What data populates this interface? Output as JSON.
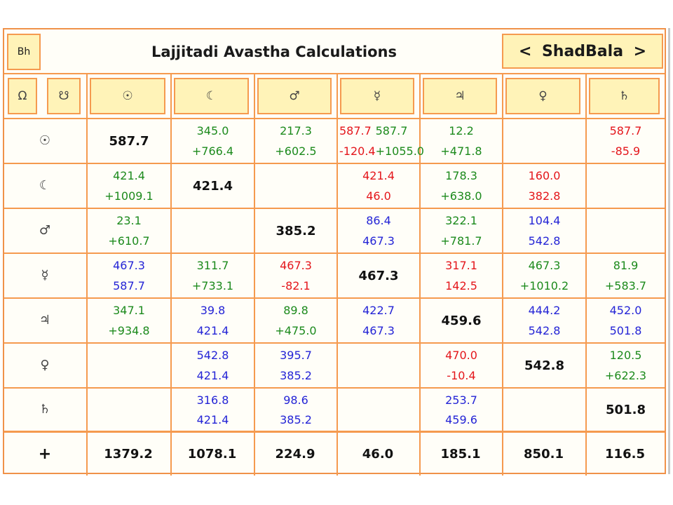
{
  "header": {
    "bh_label": "Bh",
    "title": "Lajjitadi Avastha Calculations",
    "nav_prev": "<",
    "nav_label": "ShadBala",
    "nav_next": ">"
  },
  "node_buttons": [
    "Ω",
    "☋"
  ],
  "planets": [
    "☉",
    "☾",
    "♂",
    "☿",
    "♃",
    "♀",
    "♄"
  ],
  "rows": [
    {
      "label": "☉",
      "cells": [
        {
          "diag": "587.7"
        },
        {
          "top": "345.0",
          "bottom": "+766.4",
          "color": "g"
        },
        {
          "top": "217.3",
          "bottom": "+602.5",
          "color": "g"
        },
        {
          "split": [
            {
              "top": "587.7",
              "bottom": "-120.4",
              "color": "r"
            },
            {
              "top": "587.7",
              "bottom": "+1055.0",
              "color": "g"
            }
          ]
        },
        {
          "top": "12.2",
          "bottom": "+471.8",
          "color": "g"
        },
        {},
        {
          "top": "587.7",
          "bottom": "-85.9",
          "color": "r"
        }
      ]
    },
    {
      "label": "☾",
      "cells": [
        {
          "top": "421.4",
          "bottom": "+1009.1",
          "color": "g"
        },
        {
          "diag": "421.4"
        },
        {},
        {
          "top": "421.4",
          "bottom": "46.0",
          "color": "r"
        },
        {
          "top": "178.3",
          "bottom": "+638.0",
          "color": "g"
        },
        {
          "top": "160.0",
          "bottom": "382.8",
          "color": "r"
        },
        {}
      ]
    },
    {
      "label": "♂",
      "cells": [
        {
          "top": "23.1",
          "bottom": "+610.7",
          "color": "g"
        },
        {},
        {
          "diag": "385.2"
        },
        {
          "top": "86.4",
          "bottom": "467.3",
          "color": "b"
        },
        {
          "top": "322.1",
          "bottom": "+781.7",
          "color": "g"
        },
        {
          "top": "104.4",
          "bottom": "542.8",
          "color": "b"
        },
        {}
      ]
    },
    {
      "label": "☿",
      "cells": [
        {
          "top": "467.3",
          "bottom": "587.7",
          "color": "b"
        },
        {
          "top": "311.7",
          "bottom": "+733.1",
          "color": "g"
        },
        {
          "top": "467.3",
          "bottom": "-82.1",
          "color": "r"
        },
        {
          "diag": "467.3"
        },
        {
          "top": "317.1",
          "bottom": "142.5",
          "color": "r"
        },
        {
          "top": "467.3",
          "bottom": "+1010.2",
          "color": "g"
        },
        {
          "top": "81.9",
          "bottom": "+583.7",
          "color": "g"
        }
      ]
    },
    {
      "label": "♃",
      "cells": [
        {
          "top": "347.1",
          "bottom": "+934.8",
          "color": "g"
        },
        {
          "top": "39.8",
          "bottom": "421.4",
          "color": "b"
        },
        {
          "top": "89.8",
          "bottom": "+475.0",
          "color": "g"
        },
        {
          "top": "422.7",
          "bottom": "467.3",
          "color": "b"
        },
        {
          "diag": "459.6"
        },
        {
          "top": "444.2",
          "bottom": "542.8",
          "color": "b"
        },
        {
          "top": "452.0",
          "bottom": "501.8",
          "color": "b"
        }
      ]
    },
    {
      "label": "♀",
      "cells": [
        {},
        {
          "top": "542.8",
          "bottom": "421.4",
          "color": "b"
        },
        {
          "top": "395.7",
          "bottom": "385.2",
          "color": "b"
        },
        {},
        {
          "top": "470.0",
          "bottom": "-10.4",
          "color": "r"
        },
        {
          "diag": "542.8"
        },
        {
          "top": "120.5",
          "bottom": "+622.3",
          "color": "g"
        }
      ]
    },
    {
      "label": "♄",
      "cells": [
        {},
        {
          "top": "316.8",
          "bottom": "421.4",
          "color": "b"
        },
        {
          "top": "98.6",
          "bottom": "385.2",
          "color": "b"
        },
        {},
        {
          "top": "253.7",
          "bottom": "459.6",
          "color": "b"
        },
        {},
        {
          "diag": "501.8"
        }
      ]
    }
  ],
  "totals": {
    "label": "+",
    "values": [
      "1379.2",
      "1078.1",
      "224.9",
      "46.0",
      "185.1",
      "850.1",
      "116.5"
    ]
  },
  "colors": {
    "positive": "#1c8a1c",
    "negative": "#e4161b",
    "neutral": "#2424d6",
    "border": "#f59a4f",
    "button_fill": "#fff3b8"
  }
}
